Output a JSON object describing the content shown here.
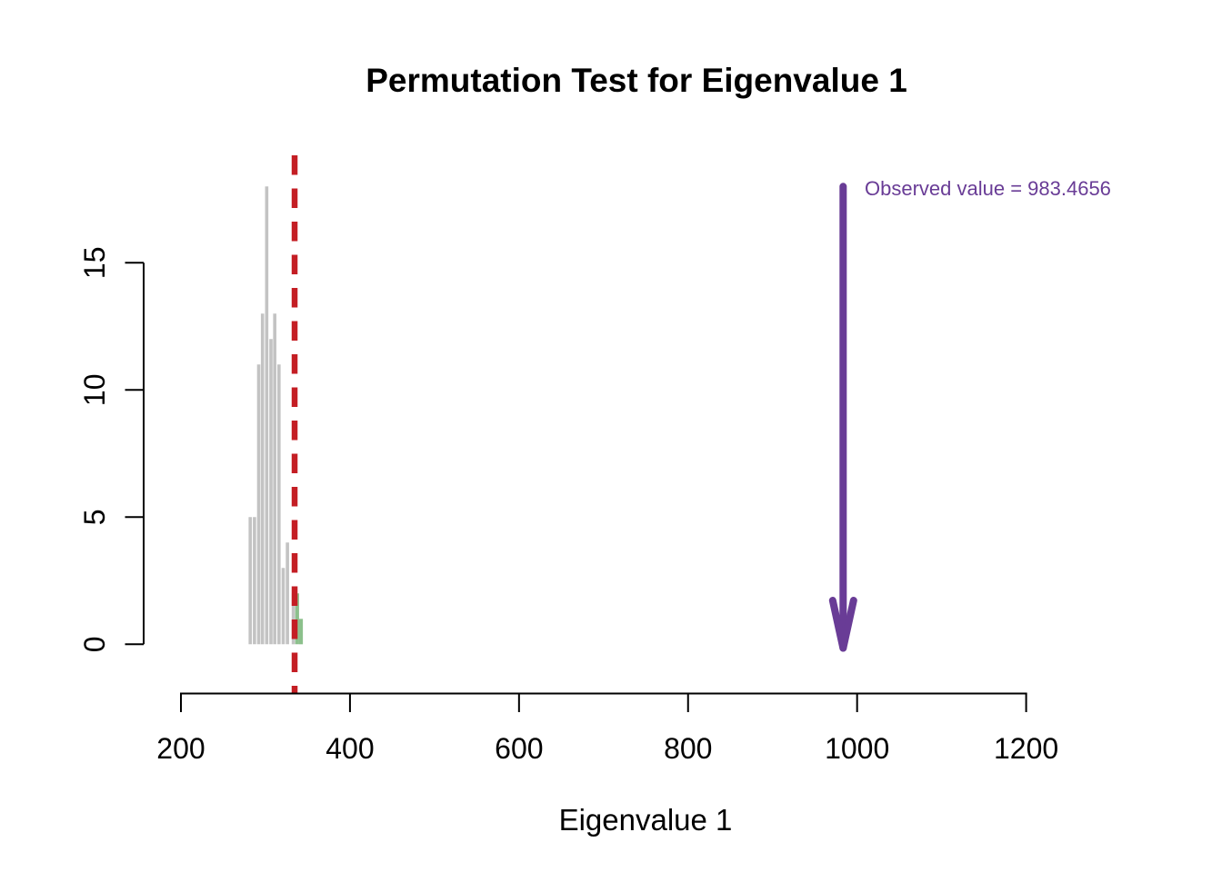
{
  "chart_data": {
    "type": "bar",
    "title": "Permutation Test for Eigenvalue 1",
    "xlabel": "Eigenvalue 1",
    "ylabel": "",
    "x_ticks": [
      200,
      400,
      600,
      800,
      1000,
      1200
    ],
    "y_ticks": [
      0,
      5,
      10,
      15
    ],
    "xlim": [
      195,
      1240
    ],
    "ylim": [
      0,
      18
    ],
    "grid": false,
    "legend": "none",
    "axis_color": "#000000",
    "series": [
      {
        "name": "permuted-eigenvalues-below-threshold",
        "color": "#C3C3C3",
        "points": [
          {
            "x": 282,
            "count": 5
          },
          {
            "x": 287,
            "count": 5
          },
          {
            "x": 292,
            "count": 11
          },
          {
            "x": 296.5,
            "count": 13
          },
          {
            "x": 301.5,
            "count": 18
          },
          {
            "x": 306.5,
            "count": 12
          },
          {
            "x": 311,
            "count": 13
          },
          {
            "x": 316,
            "count": 11
          },
          {
            "x": 321,
            "count": 3
          },
          {
            "x": 326,
            "count": 4
          },
          {
            "x": 333,
            "count": 2
          }
        ]
      },
      {
        "name": "permuted-eigenvalues-above-threshold",
        "color": "#8CC08C",
        "points": [
          {
            "x": 337.5,
            "count": 2
          },
          {
            "x": 342,
            "count": 1
          }
        ]
      }
    ],
    "threshold_line": {
      "value": 334.5,
      "color": "#C41E24",
      "style": "dashed"
    },
    "observed": {
      "value": 983.4656,
      "label": "Observed value = 983.4656",
      "color": "#693C96",
      "arrow_from_count": 18
    }
  }
}
